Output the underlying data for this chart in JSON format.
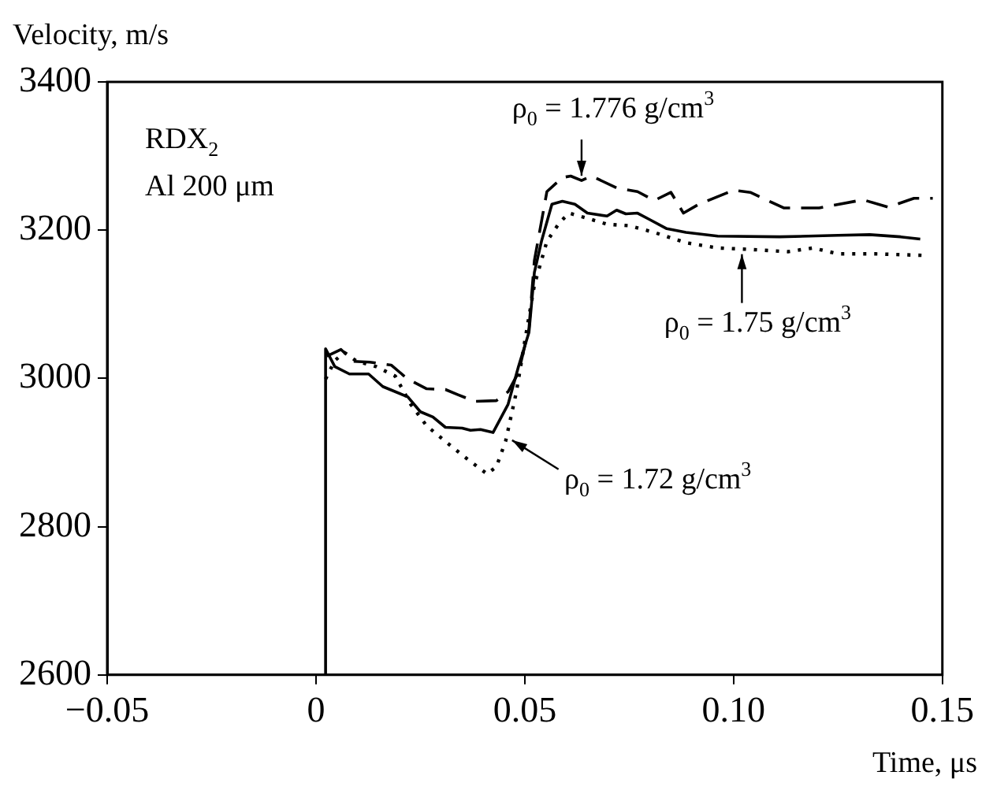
{
  "chart_data": {
    "type": "line",
    "xlabel": "Time, μs",
    "ylabel": "Velocity, m/s",
    "xlim": [
      -0.05,
      0.15
    ],
    "xticks": [
      {
        "value": -0.05,
        "label": "−0.05"
      },
      0,
      0.05,
      {
        "value": 0.1,
        "label": "0.10"
      },
      0.15
    ],
    "ylim": [
      2600,
      3400
    ],
    "yticks": [
      2600,
      2800,
      3000,
      3200,
      3400
    ],
    "grid": false,
    "legend": false,
    "marker": "none",
    "series": [
      {
        "color": "#000000",
        "line_style": "solid",
        "x": [
          0.0023,
          0.0023,
          0.0045,
          0.008,
          0.0126,
          0.016,
          0.022,
          0.025,
          0.028,
          0.031,
          0.035,
          0.037,
          0.0394,
          0.0424,
          0.046,
          0.0485,
          0.051,
          0.0523,
          0.054,
          0.0565,
          0.059,
          0.062,
          0.065,
          0.0697,
          0.072,
          0.0742,
          0.077,
          0.08,
          0.084,
          0.0886,
          0.0962,
          0.111,
          0.125,
          0.1326,
          0.14,
          0.1447
        ],
        "values": [
          2600,
          3040,
          3016,
          3006,
          3006,
          2989,
          2975,
          2955,
          2948,
          2934,
          2933,
          2930,
          2931,
          2927,
          2965,
          3016,
          3062,
          3143,
          3185,
          3235,
          3239,
          3235,
          3223,
          3219,
          3227,
          3222,
          3223,
          3214,
          3202,
          3197,
          3192,
          3191,
          3193,
          3194,
          3191,
          3188
        ]
      },
      {
        "color": "#000000",
        "line_style": "dashed",
        "x": [
          0.0026,
          0.006,
          0.009,
          0.0129,
          0.018,
          0.022,
          0.0265,
          0.031,
          0.034,
          0.038,
          0.0432,
          0.046,
          0.0485,
          0.051,
          0.0523,
          0.0553,
          0.059,
          0.061,
          0.0636,
          0.066,
          0.072,
          0.077,
          0.081,
          0.085,
          0.088,
          0.0917,
          0.1,
          0.104,
          0.112,
          0.1205,
          0.131,
          0.137,
          0.1432,
          0.1477
        ],
        "values": [
          3030,
          3039,
          3023,
          3022,
          3018,
          2999,
          2986,
          2985,
          2978,
          2969,
          2970,
          2982,
          3008,
          3067,
          3159,
          3252,
          3271,
          3273,
          3267,
          3273,
          3257,
          3252,
          3240,
          3251,
          3223,
          3235,
          3254,
          3251,
          3230,
          3230,
          3241,
          3231,
          3243,
          3243
        ]
      },
      {
        "color": "#000000",
        "line_style": "dotted",
        "x": [
          0.0023,
          0.0045,
          0.0068,
          0.0098,
          0.0144,
          0.019,
          0.0227,
          0.0265,
          0.031,
          0.0356,
          0.041,
          0.0432,
          0.0454,
          0.048,
          0.05,
          0.0523,
          0.0553,
          0.0583,
          0.0606,
          0.0644,
          0.0697,
          0.075,
          0.081,
          0.0886,
          0.0962,
          0.104,
          0.113,
          0.119,
          0.125,
          0.134,
          0.1455
        ],
        "values": [
          2999,
          3024,
          3035,
          3023,
          3016,
          3003,
          2965,
          2936,
          2915,
          2894,
          2871,
          2881,
          2915,
          2982,
          3050,
          3126,
          3185,
          3210,
          3223,
          3217,
          3208,
          3206,
          3197,
          3183,
          3176,
          3174,
          3171,
          3176,
          3168,
          3168,
          3166
        ]
      }
    ],
    "annotations": [
      "RDX$_{2}$",
      "Al 200 μm",
      {
        "text": "ρ$_{0}$ = 1.776 g/cm$^{3}$",
        "x": 0.0636,
        "y": 3267
      },
      {
        "text": "ρ$_{0}$ = 1.75 g/cm$^{3}$",
        "x": 0.102,
        "y": 3174
      },
      {
        "text": "ρ$_{0}$ = 1.72 g/cm$^{3}$",
        "x": 0.046,
        "y": 2920
      }
    ]
  }
}
